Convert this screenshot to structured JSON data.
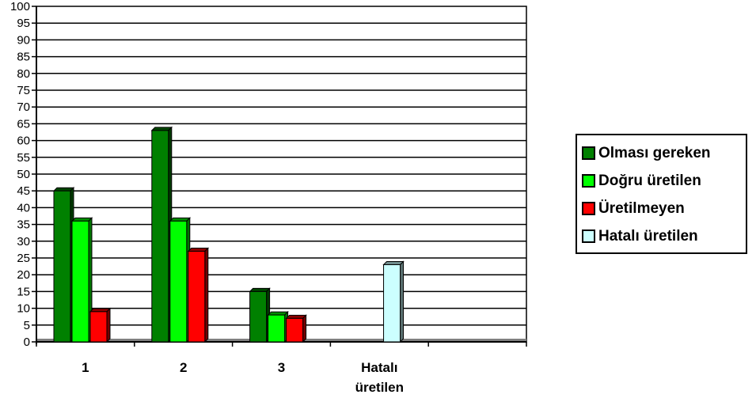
{
  "chart_data": {
    "type": "bar",
    "categories": [
      "1",
      "2",
      "3",
      "Hatalı\nüretilen"
    ],
    "series": [
      {
        "name": "Olması gereken",
        "color": "#008000",
        "values": [
          45,
          63,
          15,
          null
        ]
      },
      {
        "name": "Doğru üretilen",
        "color": "#00ff00",
        "values": [
          36,
          36,
          8,
          null
        ]
      },
      {
        "name": "Üretilmeyen",
        "color": "#ff0000",
        "values": [
          9,
          27,
          7,
          null
        ]
      },
      {
        "name": "Hatalı üretilen",
        "color": "#ccffff",
        "values": [
          null,
          null,
          null,
          23
        ]
      }
    ],
    "ylim": [
      0,
      100
    ],
    "yticks": [
      0,
      5,
      10,
      15,
      20,
      25,
      30,
      35,
      40,
      45,
      50,
      55,
      60,
      65,
      70,
      75,
      80,
      85,
      90,
      95,
      100
    ],
    "grid": true,
    "legend": "right"
  }
}
